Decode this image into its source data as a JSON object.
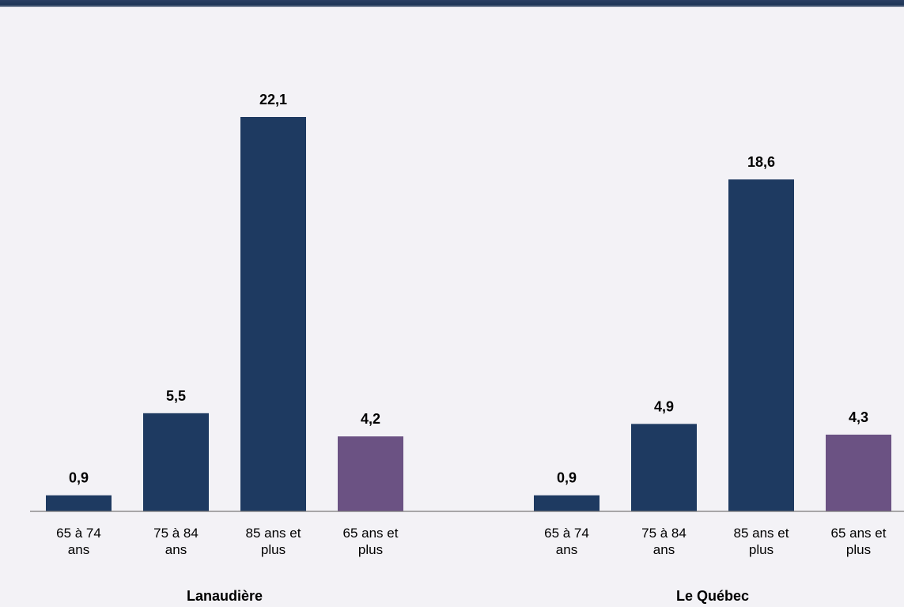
{
  "chart_data": {
    "type": "bar",
    "title": "",
    "xlabel": "",
    "ylabel": "",
    "ylim": [
      0,
      22.1
    ],
    "grid": false,
    "legend": "none",
    "colors": {
      "age_group": "#1e3a61",
      "total": "#6b5283",
      "axis": "#7a7a7a"
    },
    "groups": [
      {
        "name": "Lanaudière",
        "bars": [
          {
            "category_lines": [
              "65 à 74",
              "ans"
            ],
            "value": 0.9,
            "label": "0,9",
            "kind": "age_group"
          },
          {
            "category_lines": [
              "75 à 84",
              "ans"
            ],
            "value": 5.5,
            "label": "5,5",
            "kind": "age_group"
          },
          {
            "category_lines": [
              "85 ans et",
              "plus"
            ],
            "value": 22.1,
            "label": "22,1",
            "kind": "age_group"
          },
          {
            "category_lines": [
              "65 ans et",
              "plus"
            ],
            "value": 4.2,
            "label": "4,2",
            "kind": "total"
          }
        ]
      },
      {
        "name": "Le Québec",
        "bars": [
          {
            "category_lines": [
              "65 à 74",
              "ans"
            ],
            "value": 0.9,
            "label": "0,9",
            "kind": "age_group"
          },
          {
            "category_lines": [
              "75 à 84",
              "ans"
            ],
            "value": 4.9,
            "label": "4,9",
            "kind": "age_group"
          },
          {
            "category_lines": [
              "85 ans et",
              "plus"
            ],
            "value": 18.6,
            "label": "18,6",
            "kind": "age_group"
          },
          {
            "category_lines": [
              "65 ans et",
              "plus"
            ],
            "value": 4.3,
            "label": "4,3",
            "kind": "total"
          }
        ]
      }
    ]
  }
}
